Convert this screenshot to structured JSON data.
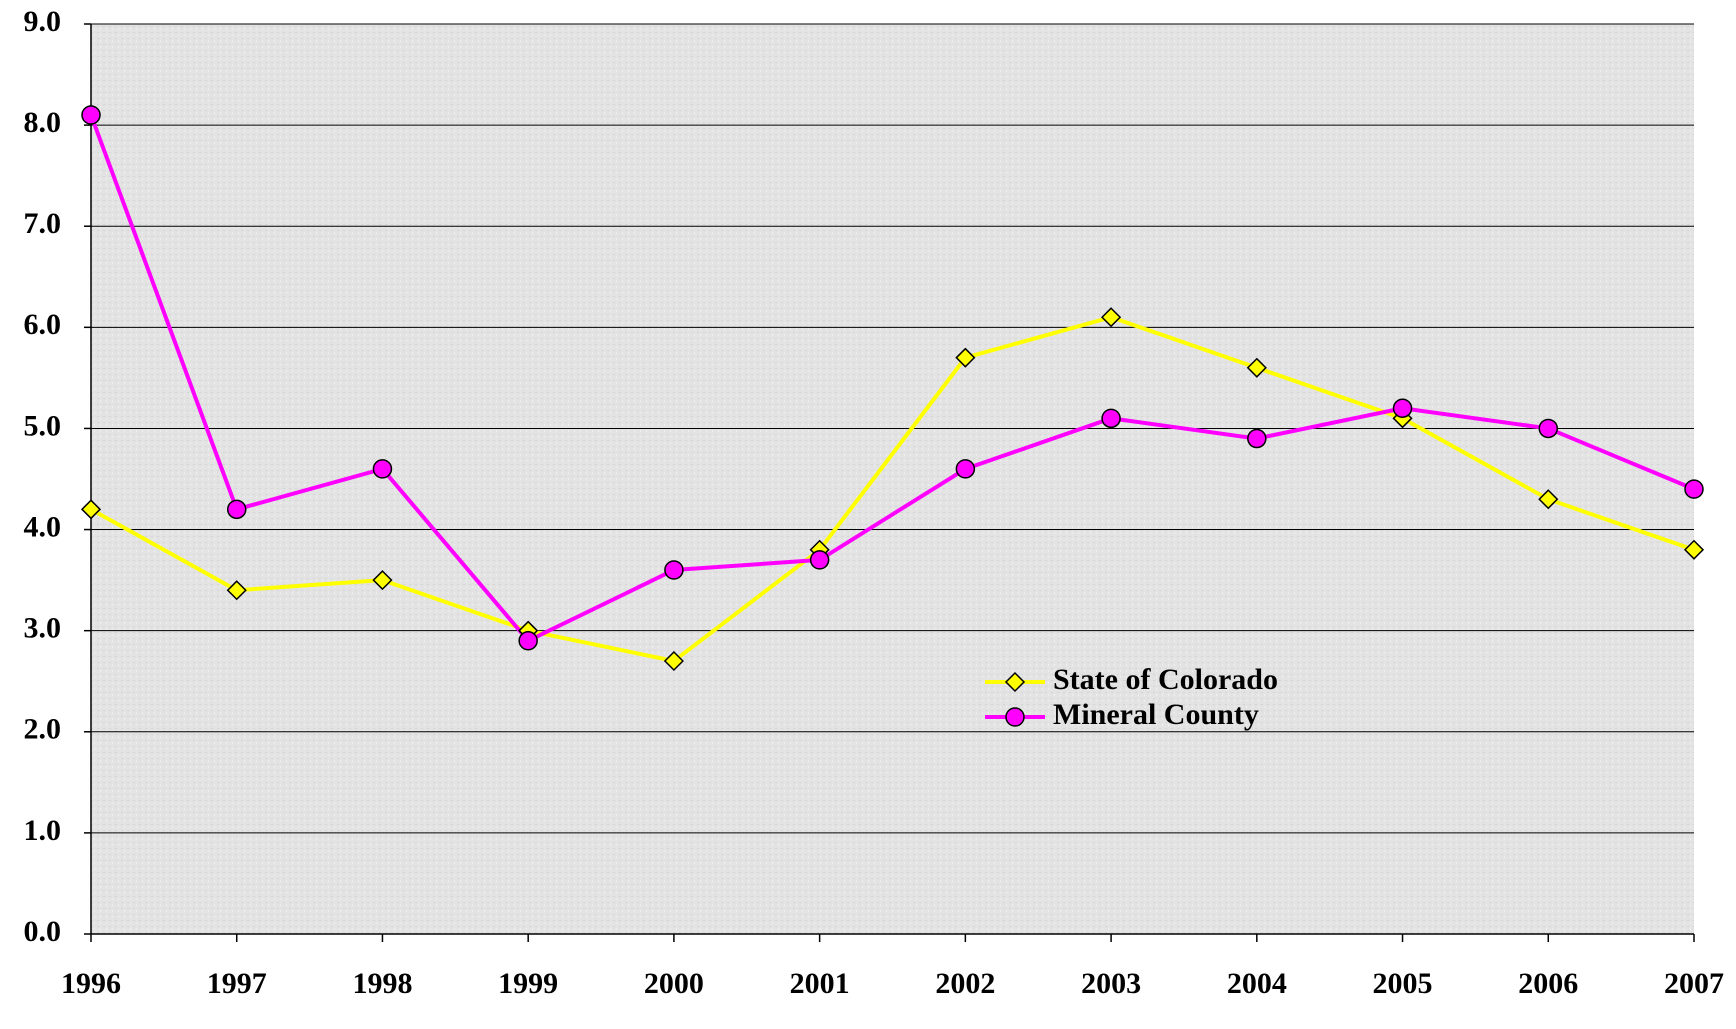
{
  "chart_data": {
    "type": "line",
    "categories": [
      "1996",
      "1997",
      "1998",
      "1999",
      "2000",
      "2001",
      "2002",
      "2003",
      "2004",
      "2005",
      "2006",
      "2007"
    ],
    "series": [
      {
        "name": "State of Colorado",
        "color": "#ffff00",
        "marker": "diamond",
        "values": [
          4.2,
          3.4,
          3.5,
          3.0,
          2.7,
          3.8,
          5.7,
          6.1,
          5.6,
          5.1,
          4.3,
          3.8
        ]
      },
      {
        "name": "Mineral County",
        "color": "#ff00ff",
        "marker": "circle",
        "values": [
          8.1,
          4.2,
          4.6,
          2.9,
          3.6,
          3.7,
          4.6,
          5.1,
          4.9,
          5.2,
          5.0,
          4.4
        ]
      }
    ],
    "ylim": [
      0,
      9
    ],
    "yticks": [
      {
        "value": 0,
        "label": "0.0"
      },
      {
        "value": 1,
        "label": "1.0"
      },
      {
        "value": 2,
        "label": "2.0"
      },
      {
        "value": 3,
        "label": "3.0"
      },
      {
        "value": 4,
        "label": "4.0"
      },
      {
        "value": 5,
        "label": "5.0"
      },
      {
        "value": 6,
        "label": "6.0"
      },
      {
        "value": 7,
        "label": "7.0"
      },
      {
        "value": 8,
        "label": "8.0"
      },
      {
        "value": 9,
        "label": "9.0"
      }
    ],
    "grid": true
  }
}
